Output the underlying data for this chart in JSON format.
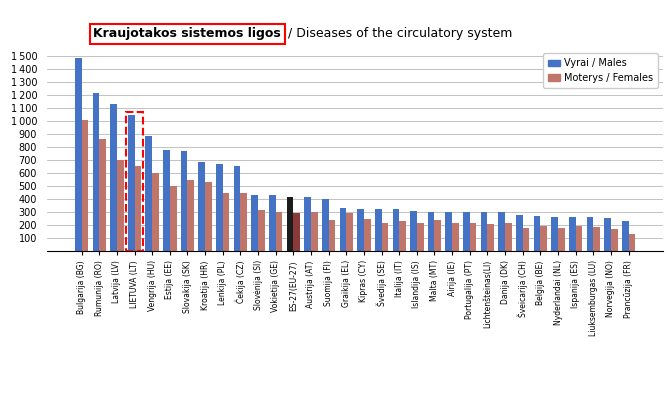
{
  "categories": [
    "Bulgarija (BG)",
    "Rumunija (RO)",
    "Latvija (LV)",
    "LIETUVA (LT)",
    "Vengrija (HU)",
    "Estija (EE)",
    "Slovakija (SK)",
    "Kroatija (HR)",
    "Lenkija (PL)",
    "Čekija (CZ)",
    "Slovėnija (SI)",
    "Vokietija (GE)",
    "ES-27(EU-27)",
    "Austrija (AT)",
    "Suomija (FI)",
    "Graikija (EL)",
    "Kipras (CY)",
    "Švedija (SE)",
    "Italija (IT)",
    "Islandija (IS)",
    "Malta (MT)",
    "Airija (IE)",
    "Portugalija (PT)",
    "Lichtenšteinas(LI)",
    "Danija (DK)",
    "Šveicarija (CH)",
    "Belgija (BE)",
    "Nyderlandai (NL)",
    "Ispanija (ES)",
    "Liuksemburgas (LU)",
    "Norvegija (NO)",
    "Prancūzija (FR)"
  ],
  "males": [
    1490,
    1215,
    1130,
    1045,
    885,
    780,
    770,
    690,
    670,
    655,
    430,
    430,
    420,
    415,
    400,
    330,
    325,
    325,
    325,
    310,
    305,
    305,
    305,
    300,
    300,
    275,
    270,
    265,
    265,
    265,
    255,
    230
  ],
  "females": [
    1010,
    860,
    700,
    655,
    605,
    500,
    545,
    535,
    450,
    445,
    315,
    300,
    295,
    300,
    240,
    295,
    245,
    215,
    230,
    215,
    240,
    220,
    220,
    210,
    215,
    175,
    190,
    175,
    190,
    185,
    170,
    135
  ],
  "male_color": "#4472C4",
  "female_color": "#C0756A",
  "eu27_male_color": "#1C1C1C",
  "eu27_female_color": "#8B3A3A",
  "title_lt": "Kraujotakos sistemos ligos",
  "title_en": " / Diseases of the circulatory system",
  "legend_male": "Vyrai / Males",
  "legend_female": "Moterys / Females",
  "ylabel_ticks": [
    100,
    200,
    300,
    400,
    500,
    600,
    700,
    800,
    900,
    1000,
    1100,
    1200,
    1300,
    1400,
    1500
  ],
  "ylim": [
    0,
    1560
  ],
  "lietuva_box_color": "red",
  "background_color": "#FFFFFF"
}
